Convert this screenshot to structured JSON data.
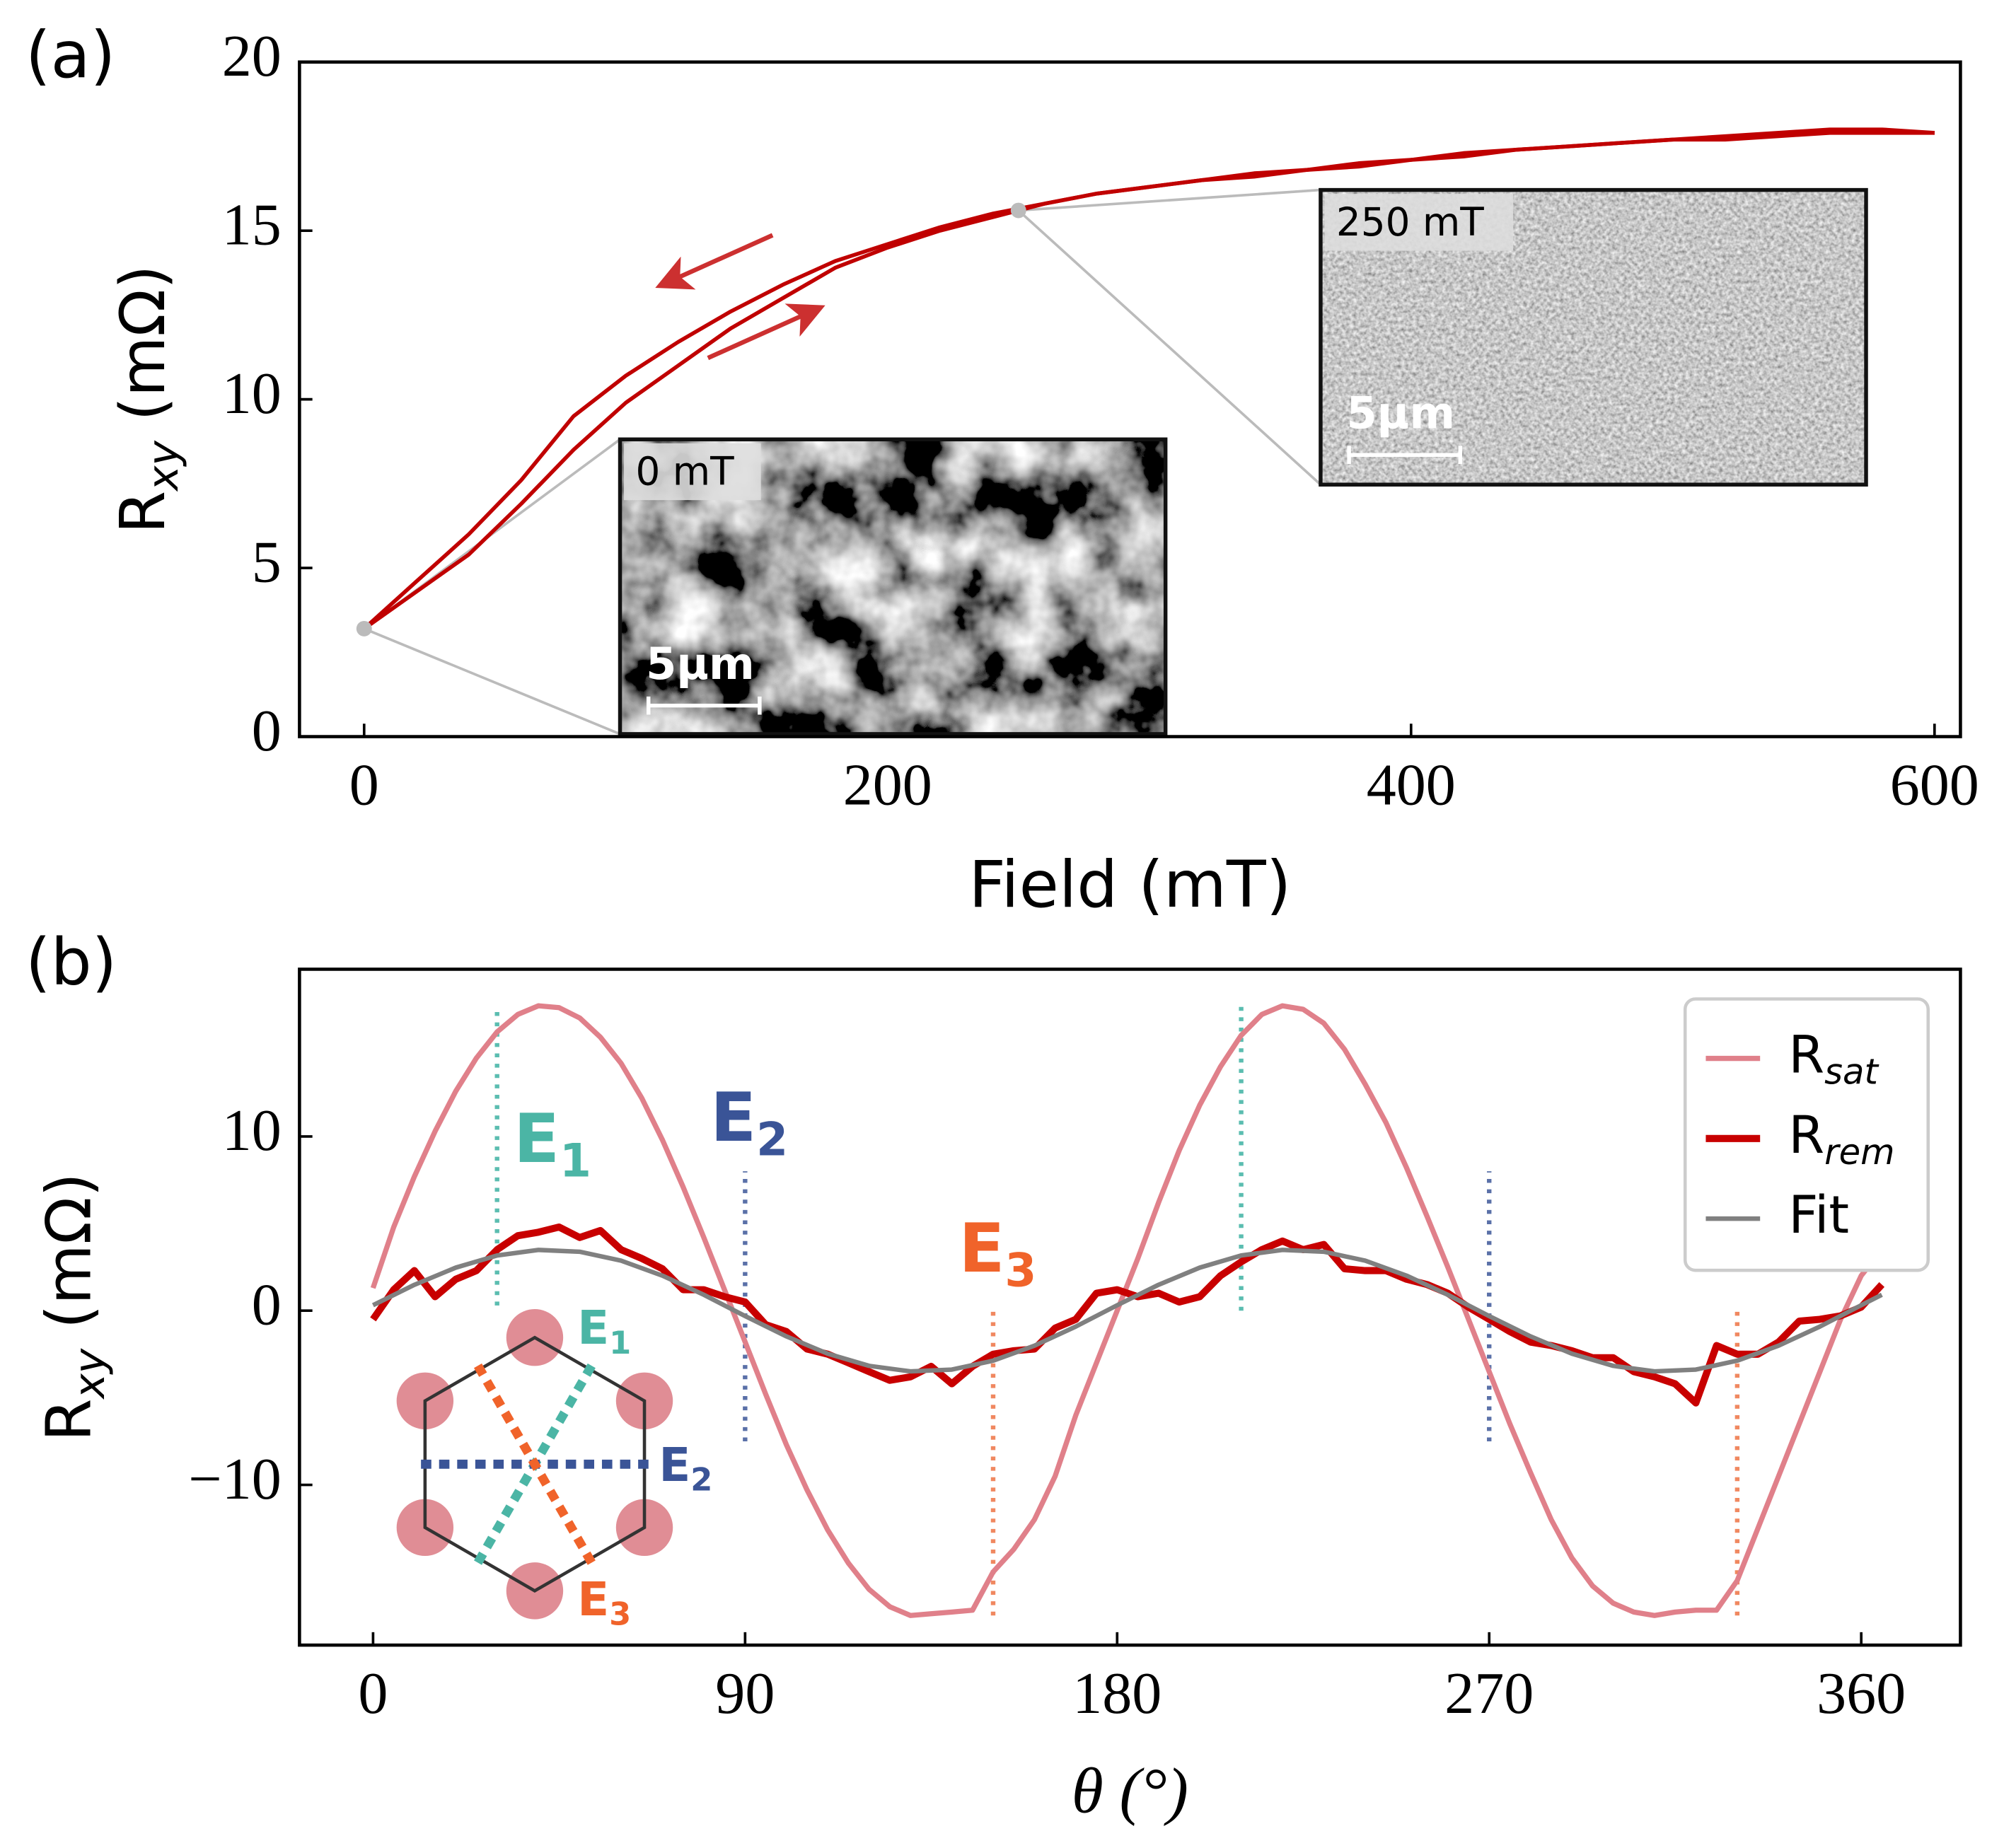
{
  "chart_data": [
    {
      "type": "line",
      "panel_label": "(a)",
      "x_label": "Field (mT)",
      "y_label": "R_xy (mΩ)",
      "x": [
        0,
        20,
        40,
        60,
        80,
        100,
        120,
        140,
        160,
        180,
        200,
        220,
        240,
        260,
        280,
        300,
        320,
        340,
        360,
        380,
        400,
        420,
        440,
        460,
        480,
        500,
        520,
        540,
        560,
        580,
        600
      ],
      "series": [
        {
          "color": "#c00000",
          "values": [
            3.2,
            4.3,
            5.4,
            6.9,
            8.5,
            9.9,
            11.0,
            12.1,
            13.0,
            13.9,
            14.5,
            15.0,
            15.4,
            15.8,
            16.1,
            16.3,
            16.5,
            16.7,
            16.8,
            17.0,
            17.1,
            17.2,
            17.4,
            17.5,
            17.6,
            17.7,
            17.7,
            17.8,
            17.9,
            17.9,
            17.9
          ]
        },
        {
          "color": "#c00000",
          "values": [
            3.2,
            4.6,
            6.0,
            7.6,
            9.5,
            10.7,
            11.7,
            12.6,
            13.4,
            14.1,
            14.6,
            15.1,
            15.5,
            15.8,
            16.1,
            16.3,
            16.5,
            16.6,
            16.8,
            16.9,
            17.1,
            17.3,
            17.4,
            17.5,
            17.6,
            17.7,
            17.8,
            17.9,
            18.0,
            18.0,
            17.9
          ]
        }
      ],
      "highlight_points": {
        "x": [
          0,
          250
        ],
        "y": [
          3.2,
          15.6
        ],
        "color": "#bbbbbb"
      },
      "insets": [
        {
          "label": "0 mT",
          "scale_bar": "5μm"
        },
        {
          "label": "250 mT",
          "scale_bar": "5μm"
        }
      ],
      "xlim": [
        -24.7,
        609.9
      ],
      "ylim": [
        0,
        20
      ],
      "xticks": [
        0,
        200,
        400,
        600
      ],
      "yticks": [
        0,
        5,
        10,
        15,
        20
      ]
    },
    {
      "type": "line",
      "panel_label": "(b)",
      "x_label": "θ (°)",
      "y_label": "R_xy (mΩ)",
      "x": [
        0,
        5,
        10,
        15,
        20,
        25,
        30,
        35,
        40,
        45,
        50,
        55,
        60,
        65,
        70,
        75,
        80,
        85,
        90,
        95,
        100,
        105,
        110,
        115,
        120,
        125,
        130,
        135,
        140,
        145,
        150,
        155,
        160,
        165,
        170,
        175,
        180,
        185,
        190,
        195,
        200,
        205,
        210,
        215,
        220,
        225,
        230,
        235,
        240,
        245,
        250,
        255,
        260,
        265,
        270,
        275,
        280,
        285,
        290,
        295,
        300,
        305,
        310,
        315,
        320,
        325,
        330,
        335,
        340,
        345,
        350,
        355,
        360,
        365
      ],
      "series": [
        {
          "name": "R_sat",
          "color": "#e0808a",
          "width": 4,
          "values": [
            1.3,
            4.8,
            7.7,
            10.3,
            12.6,
            14.5,
            16.0,
            17.0,
            17.5,
            17.4,
            16.8,
            15.7,
            14.2,
            12.2,
            9.8,
            7.1,
            4.2,
            1.2,
            -1.8,
            -4.8,
            -7.7,
            -10.3,
            -12.6,
            -14.5,
            -16.0,
            -17.0,
            -17.5,
            -17.4,
            -17.3,
            -17.2,
            -15.0,
            -13.7,
            -12.0,
            -9.5,
            -6.0,
            -3.0,
            0.0,
            3.0,
            6.2,
            9.2,
            11.8,
            14.0,
            15.8,
            17.0,
            17.5,
            17.3,
            16.5,
            15.0,
            13.0,
            10.8,
            8.2,
            5.4,
            2.5,
            -0.5,
            -3.5,
            -6.5,
            -9.3,
            -12.0,
            -14.2,
            -15.8,
            -16.8,
            -17.3,
            -17.5,
            -17.3,
            -17.2,
            -17.2,
            -15.5,
            -12.5,
            -9.5,
            -6.5,
            -3.5,
            -0.5,
            2.0,
            3.5
          ]
        },
        {
          "name": "R_rem",
          "color": "#c80000",
          "width": 5.5,
          "values": [
            -0.5,
            1.2,
            2.3,
            0.8,
            1.8,
            2.3,
            3.5,
            4.3,
            4.5,
            4.8,
            4.2,
            4.6,
            3.5,
            3.0,
            2.4,
            1.2,
            1.2,
            0.8,
            0.5,
            -0.8,
            -1.2,
            -2.2,
            -2.5,
            -3.0,
            -3.5,
            -4.0,
            -3.8,
            -3.2,
            -4.2,
            -3.2,
            -2.5,
            -2.3,
            -2.2,
            -1.0,
            -0.5,
            1.0,
            1.2,
            0.8,
            1.0,
            0.5,
            0.8,
            2.0,
            2.8,
            3.5,
            4.0,
            3.5,
            3.8,
            2.4,
            2.3,
            2.3,
            1.8,
            1.5,
            1.0,
            0.2,
            -0.5,
            -1.2,
            -1.8,
            -2.0,
            -2.3,
            -2.7,
            -2.7,
            -3.5,
            -3.8,
            -4.2,
            -5.3,
            -2.0,
            -2.5,
            -2.5,
            -1.8,
            -0.6,
            -0.5,
            -0.3,
            0.2,
            1.5
          ]
        },
        {
          "name": "Fit",
          "color": "#808080",
          "width": 3.5,
          "x": [
            0,
            10,
            20,
            30,
            40,
            50,
            60,
            70,
            80,
            90,
            100,
            110,
            120,
            130,
            140,
            150,
            160,
            170,
            180,
            190,
            200,
            210,
            220,
            230,
            240,
            250,
            260,
            270,
            280,
            290,
            300,
            310,
            320,
            330,
            340,
            350,
            360,
            365
          ],
          "values": [
            0.31,
            1.48,
            2.47,
            3.17,
            3.49,
            3.38,
            2.87,
            2.01,
            0.91,
            -0.31,
            -1.48,
            -2.47,
            -3.17,
            -3.49,
            -3.38,
            -2.87,
            -2.01,
            -0.91,
            0.31,
            1.48,
            2.47,
            3.17,
            3.49,
            3.38,
            2.87,
            2.01,
            0.91,
            -0.31,
            -1.48,
            -2.47,
            -3.17,
            -3.49,
            -3.38,
            -2.87,
            -2.01,
            -0.91,
            0.31,
            0.91
          ]
        }
      ],
      "vlines": [
        {
          "x": 30,
          "y": [
            0.3,
            17.5
          ],
          "color": "#5bbdb0"
        },
        {
          "x": 210,
          "y": [
            0,
            17.5
          ],
          "color": "#5bbdb0"
        },
        {
          "x": 90,
          "y": [
            -7.5,
            8
          ],
          "color": "#5a70a8"
        },
        {
          "x": 270,
          "y": [
            -7.5,
            8
          ],
          "color": "#5a70a8"
        },
        {
          "x": 150,
          "y": [
            -17.5,
            0
          ],
          "color": "#f08860"
        },
        {
          "x": 330,
          "y": [
            -17.5,
            0
          ],
          "color": "#f08860"
        }
      ],
      "annotations": [
        {
          "text": "E_1",
          "x": 34,
          "y": 9.6,
          "color": "#4bb5a5"
        },
        {
          "text": "E_2",
          "x": 81.6,
          "y": 10.8,
          "color": "#3a5497"
        },
        {
          "text": "E_3",
          "x": 141.7,
          "y": 3.3,
          "color": "#f0632a"
        }
      ],
      "hex_inset": {
        "labels": [
          "E_1",
          "E_2",
          "E_3"
        ],
        "colors": [
          "#4bb5a5",
          "#3a5497",
          "#f0632a"
        ]
      },
      "legend": "upper right",
      "xlim": [
        -17.8,
        384
      ],
      "ylim": [
        -19.2,
        19.6
      ],
      "xticks": [
        0,
        90,
        180,
        270,
        360
      ],
      "yticks": [
        {
          "value": -10,
          "label": "−10"
        },
        0,
        10
      ]
    }
  ]
}
